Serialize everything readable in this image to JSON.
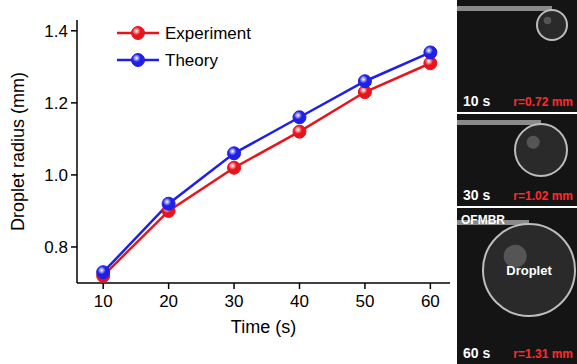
{
  "chart_data": {
    "type": "line",
    "x_label": "Time (s)",
    "y_label": "Droplet radius (mm)",
    "x": [
      10,
      20,
      30,
      40,
      50,
      60
    ],
    "series": [
      {
        "name": "Experiment",
        "color": "#e8141c",
        "marker": "circle",
        "values": [
          0.72,
          0.9,
          1.02,
          1.12,
          1.23,
          1.31
        ]
      },
      {
        "name": "Theory",
        "color": "#1f1fe8",
        "marker": "circle",
        "values": [
          0.73,
          0.92,
          1.06,
          1.16,
          1.26,
          1.34
        ]
      }
    ],
    "xlim": [
      6,
      63
    ],
    "xticks": [
      10,
      20,
      30,
      40,
      50,
      60
    ],
    "ylim": [
      0.7,
      1.43
    ],
    "yticks": [
      0.8,
      {
        "value": 1.0,
        "label": "1.0"
      },
      1.2,
      {
        "value": 1.4,
        "label": "1.4"
      }
    ],
    "grid": false,
    "legend": "upper left",
    "annotations": [
      {
        "time_label": "10 s",
        "radius_label": "r=0.72 mm"
      },
      {
        "time_label": "30 s",
        "radius_label": "r=1.02 mm"
      },
      {
        "time_label": "60 s",
        "radius_label": "r=1.31 mm",
        "device_label": "OFMBR",
        "droplet_label": "Droplet"
      }
    ]
  }
}
